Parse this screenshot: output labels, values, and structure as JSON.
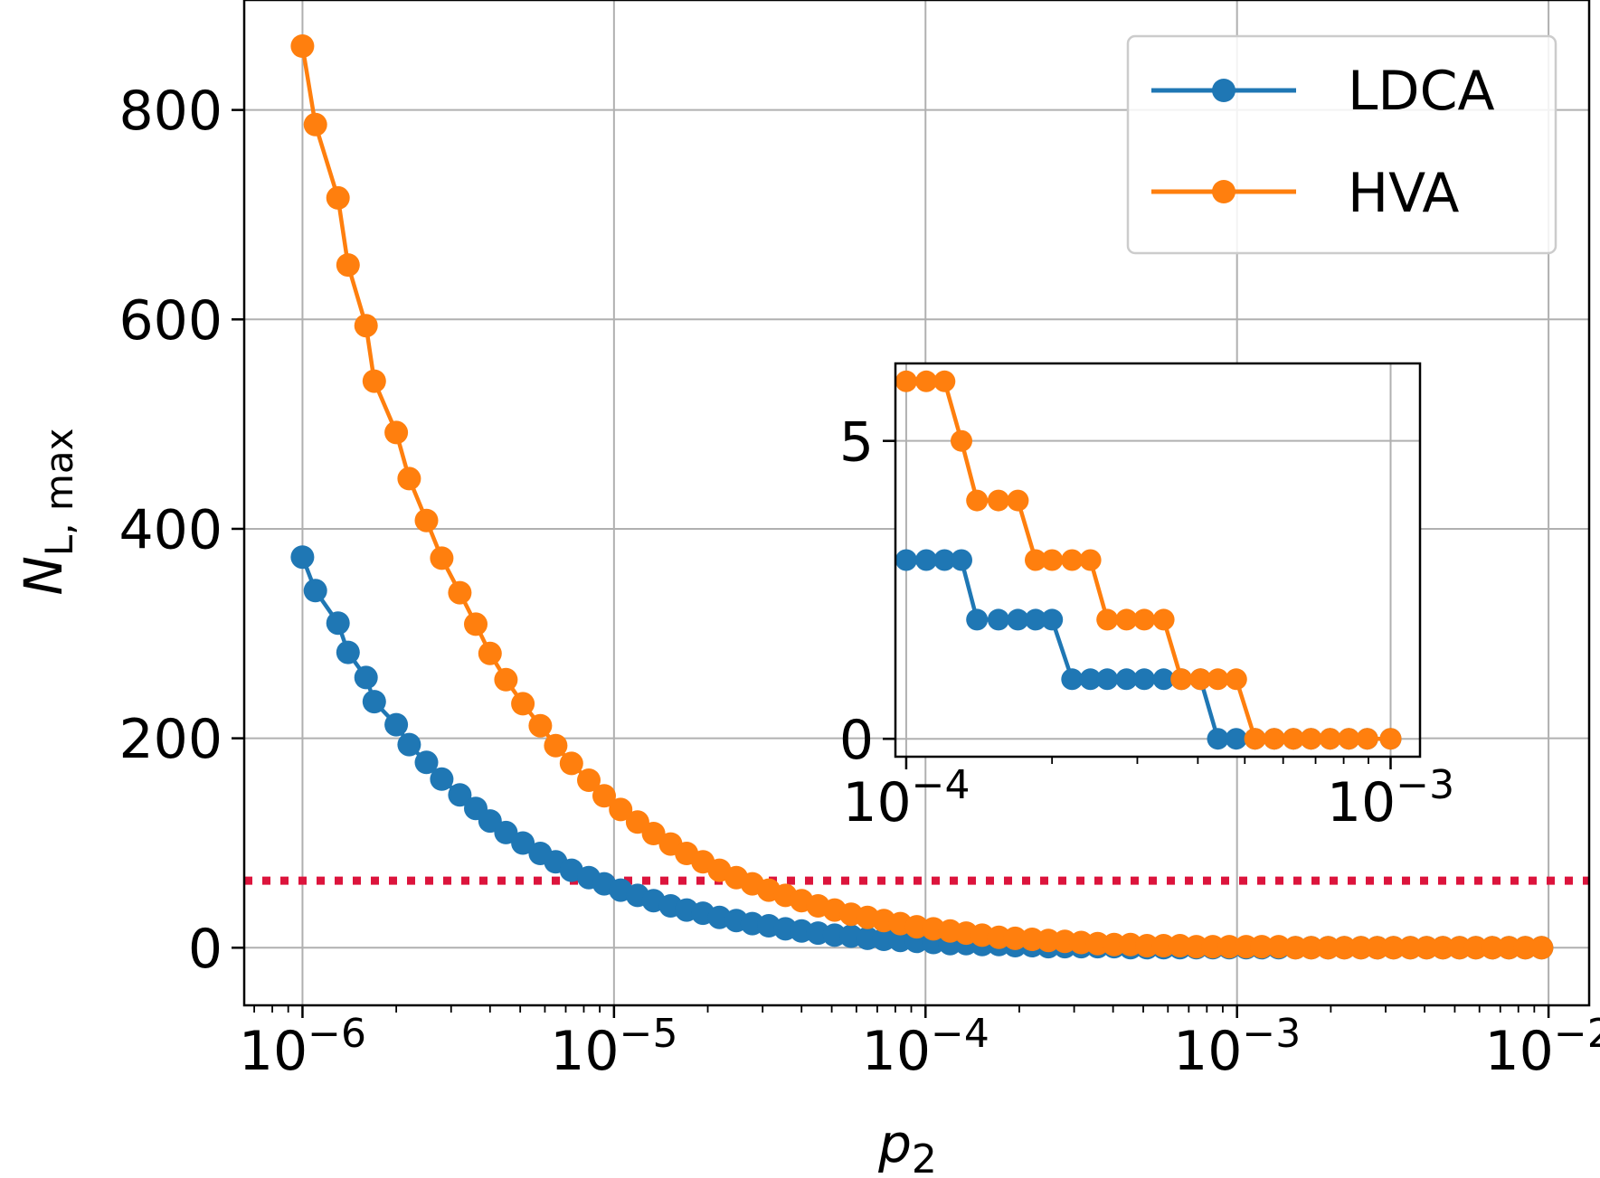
{
  "chart_data": [
    {
      "type": "line",
      "title": "",
      "xlabel": "p",
      "xlabel_sub": "2",
      "ylabel": "N",
      "ylabel_sub": "L, max",
      "x_scale": "log",
      "xlim": [
        6.5e-07,
        0.0135
      ],
      "ylim": [
        -55,
        905
      ],
      "grid": true,
      "legend_position": "top-right",
      "x_ticks": [
        1e-06,
        1e-05,
        0.0001,
        0.001,
        0.01
      ],
      "x_tick_labels": [
        {
          "base": "10",
          "exp": "−6"
        },
        {
          "base": "10",
          "exp": "−5"
        },
        {
          "base": "10",
          "exp": "−4"
        },
        {
          "base": "10",
          "exp": "−3"
        },
        {
          "base": "10",
          "exp": "−2"
        }
      ],
      "y_ticks": [
        0,
        200,
        400,
        600,
        800
      ],
      "y_tick_labels": [
        "0",
        "200",
        "400",
        "600",
        "800"
      ],
      "threshold_line": {
        "y": 64,
        "color": "#dc143c",
        "style": "dotted"
      },
      "x": [
        1e-06,
        1.1e-06,
        1.3e-06,
        1.4e-06,
        1.6e-06,
        1.7e-06,
        2e-06,
        2.2e-06,
        2.5e-06,
        2.8e-06,
        3.2e-06,
        3.6e-06,
        4e-06,
        4.5e-06,
        5.1e-06,
        5.8e-06,
        6.5e-06,
        7.3e-06,
        8.3e-06,
        9.3e-06,
        1.05e-05,
        1.19e-05,
        1.34e-05,
        1.52e-05,
        1.71e-05,
        1.93e-05,
        2.18e-05,
        2.47e-05,
        2.78e-05,
        3.14e-05,
        3.55e-05,
        4e-05,
        4.52e-05,
        5.11e-05,
        5.77e-05,
        6.51e-05,
        7.35e-05,
        8.3e-05,
        9.37e-05,
        0.000106,
        0.00012,
        0.000135,
        0.000152,
        0.000172,
        0.000194,
        0.00022,
        0.000248,
        0.00028,
        0.000316,
        0.000357,
        0.000403,
        0.000455,
        0.000514,
        0.000581,
        0.000656,
        0.00074,
        0.000836,
        0.000944,
        0.00107,
        0.0012,
        0.00136,
        0.00154,
        0.00173,
        0.00196,
        0.00221,
        0.0025,
        0.00282,
        0.00318,
        0.0036,
        0.00406,
        0.00458,
        0.00518,
        0.00584,
        0.0066,
        0.00746,
        0.00842,
        0.0095
      ],
      "series": [
        {
          "name": "LDCA",
          "color": "#1f77b4",
          "values": [
            373,
            341,
            310,
            282,
            258,
            235,
            213,
            194,
            177,
            161,
            146,
            133,
            121,
            110,
            100,
            90,
            82,
            74,
            67,
            61,
            55,
            50,
            45,
            40,
            36,
            33,
            29,
            26,
            23,
            21,
            18,
            16,
            14,
            12,
            11,
            9,
            8,
            7,
            6,
            5,
            4,
            4,
            3,
            3,
            2,
            2,
            1,
            1,
            1,
            1,
            1,
            0,
            0,
            0,
            0,
            0,
            0,
            0,
            0,
            0,
            0,
            0,
            0,
            0,
            0,
            0,
            0,
            0,
            0,
            0,
            0,
            0,
            0,
            0,
            0,
            0,
            0
          ]
        },
        {
          "name": "HVA",
          "color": "#ff7f0e",
          "values": [
            861,
            786,
            716,
            652,
            594,
            541,
            492,
            448,
            408,
            372,
            339,
            309,
            281,
            256,
            233,
            212,
            193,
            176,
            160,
            145,
            132,
            120,
            109,
            99,
            90,
            82,
            74,
            67,
            61,
            55,
            50,
            45,
            40,
            36,
            32,
            29,
            26,
            23,
            20,
            18,
            16,
            14,
            12,
            10,
            9,
            8,
            7,
            6,
            5,
            4,
            3,
            3,
            2,
            2,
            2,
            1,
            1,
            1,
            1,
            1,
            1,
            0,
            0,
            0,
            0,
            0,
            0,
            0,
            0,
            0,
            0,
            0,
            0,
            0,
            0,
            0,
            0
          ]
        }
      ]
    },
    {
      "type": "line",
      "title": "",
      "role": "inset",
      "x_scale": "log",
      "xlim": [
        9.5e-05,
        0.00115
      ],
      "ylim": [
        -0.3,
        6.3
      ],
      "grid": true,
      "x_ticks": [
        0.0001,
        0.001
      ],
      "x_tick_labels": [
        {
          "base": "10",
          "exp": "−4"
        },
        {
          "base": "10",
          "exp": "−3"
        }
      ],
      "y_ticks": [
        0,
        5
      ],
      "y_tick_labels": [
        "0",
        "5"
      ],
      "x": [
        0.0001,
        0.00011,
        0.00012,
        0.00013,
        0.00014,
        0.000155,
        0.00017,
        0.000185,
        0.0002,
        0.00022,
        0.00024,
        0.00026,
        0.000285,
        0.00031,
        0.00034,
        0.00037,
        0.000405,
        0.00044,
        0.00048,
        0.000525,
        0.000575,
        0.00063,
        0.000685,
        0.00075,
        0.00082,
        0.000895,
        0.001
      ],
      "series": [
        {
          "name": "LDCA",
          "color": "#1f77b4",
          "values": [
            3,
            3,
            3,
            3,
            2,
            2,
            2,
            2,
            2,
            1,
            1,
            1,
            1,
            1,
            1,
            1,
            1,
            0,
            0,
            0,
            0,
            0,
            0,
            0,
            0,
            0,
            0
          ]
        },
        {
          "name": "HVA",
          "color": "#ff7f0e",
          "values": [
            6,
            6,
            6,
            5,
            4,
            4,
            4,
            3,
            3,
            3,
            3,
            2,
            2,
            2,
            2,
            1,
            1,
            1,
            1,
            0,
            0,
            0,
            0,
            0,
            0,
            0,
            0
          ]
        }
      ]
    }
  ]
}
